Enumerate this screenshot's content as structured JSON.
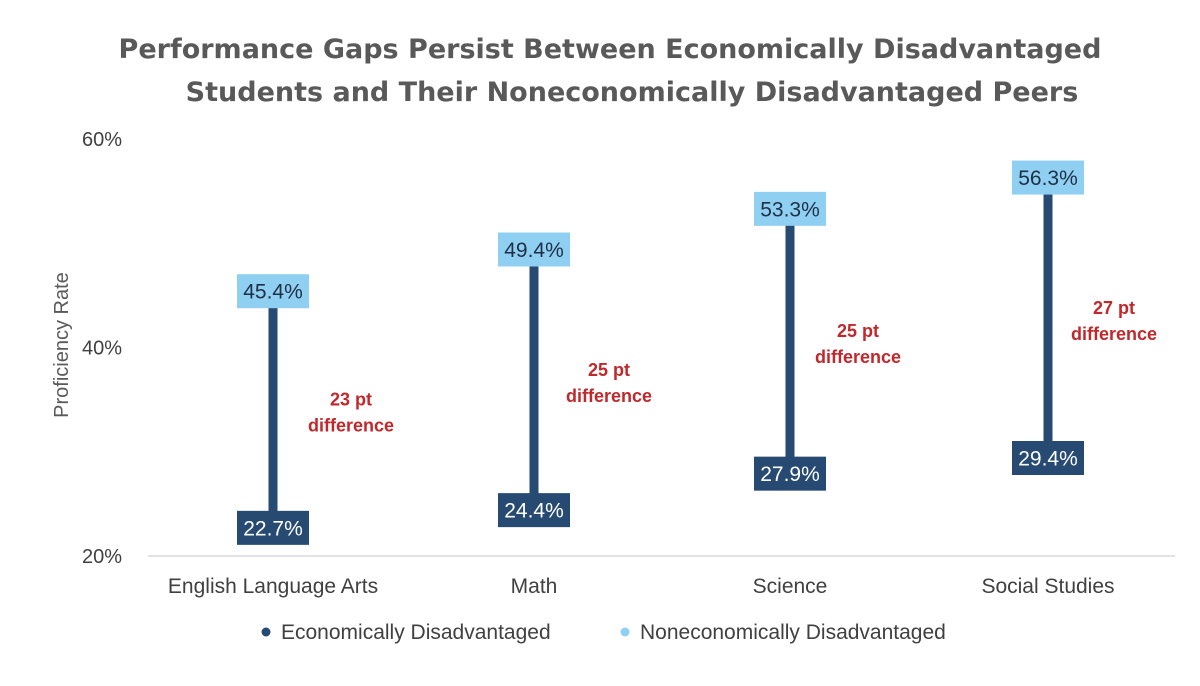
{
  "chart_data": {
    "type": "dumbbell",
    "title_lines": [
      "Performance Gaps Persist Between Economically Disadvantaged",
      "Students and Their Noneconomically Disadvantaged Peers"
    ],
    "ylabel": "Proficiency Rate",
    "ylim": [
      20,
      60
    ],
    "yticks": [
      20,
      40,
      60
    ],
    "ytick_labels": [
      "20%",
      "40%",
      "60%"
    ],
    "categories": [
      "English Language Arts",
      "Math",
      "Science",
      "Social Studies"
    ],
    "series": [
      {
        "name": "Economically Disadvantaged",
        "values": [
          22.7,
          24.4,
          27.9,
          29.4
        ],
        "labels": [
          "22.7%",
          "24.4%",
          "27.9%",
          "29.4%"
        ]
      },
      {
        "name": "Noneconomically Disadvantaged",
        "values": [
          45.4,
          49.4,
          53.3,
          56.3
        ],
        "labels": [
          "45.4%",
          "49.4%",
          "53.3%",
          "56.3%"
        ]
      }
    ],
    "annotations": [
      {
        "line1": "23 pt",
        "line2": "difference"
      },
      {
        "line1": "25 pt",
        "line2": "difference"
      },
      {
        "line1": "25 pt",
        "line2": "difference"
      },
      {
        "line1": "27 pt",
        "line2": "difference"
      }
    ],
    "legend": "bottom"
  },
  "colors": {
    "dark": "#264a72",
    "light": "#8fd0f2",
    "annotation": "#c0282b",
    "axis": "#d9d9d9"
  }
}
